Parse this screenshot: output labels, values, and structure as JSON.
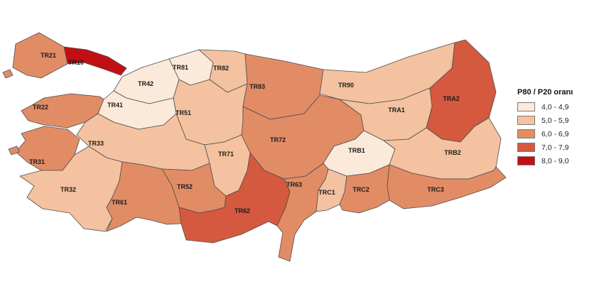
{
  "legend": {
    "title": "P80 / P20 oranı",
    "classes": [
      {
        "label": "4,0 - 4,9",
        "color": "#fbead9"
      },
      {
        "label": "5,0 - 5,9",
        "color": "#f4c2a0"
      },
      {
        "label": "6,0 - 6,9",
        "color": "#e28c66"
      },
      {
        "label": "7,0 - 7,9",
        "color": "#d4593e"
      },
      {
        "label": "8,0 - 9,0",
        "color": "#c20f13"
      }
    ],
    "stroke_color": "#4d4d4d"
  },
  "chart_data": {
    "type": "choropleth-map",
    "title": "P80 / P20 oranı",
    "geography": "Turkey NUTS-2 regions",
    "legend_position": "right",
    "legend_classes": [
      "4,0 - 4,9",
      "5,0 - 5,9",
      "6,0 - 6,9",
      "7,0 - 7,9",
      "8,0 - 9,0"
    ],
    "class_colors": [
      "#fbead9",
      "#f4c2a0",
      "#e28c66",
      "#d4593e",
      "#c20f13"
    ],
    "regions": [
      {
        "code": "TR10",
        "value_class": "8,0 - 9,0",
        "class_index": 4
      },
      {
        "code": "TR21",
        "value_class": "6,0 - 6,9",
        "class_index": 2
      },
      {
        "code": "TR22",
        "value_class": "6,0 - 6,9",
        "class_index": 2
      },
      {
        "code": "TR31",
        "value_class": "6,0 - 6,9",
        "class_index": 2
      },
      {
        "code": "TR32",
        "value_class": "5,0 - 5,9",
        "class_index": 1
      },
      {
        "code": "TR33",
        "value_class": "5,0 - 5,9",
        "class_index": 1
      },
      {
        "code": "TR41",
        "value_class": "4,0 - 4,9",
        "class_index": 0
      },
      {
        "code": "TR42",
        "value_class": "4,0 - 4,9",
        "class_index": 0
      },
      {
        "code": "TR51",
        "value_class": "5,0 - 5,9",
        "class_index": 1
      },
      {
        "code": "TR52",
        "value_class": "6,0 - 6,9",
        "class_index": 2
      },
      {
        "code": "TR61",
        "value_class": "6,0 - 6,9",
        "class_index": 2
      },
      {
        "code": "TR62",
        "value_class": "7,0 - 7,9",
        "class_index": 3
      },
      {
        "code": "TR63",
        "value_class": "6,0 - 6,9",
        "class_index": 2
      },
      {
        "code": "TR71",
        "value_class": "5,0 - 5,9",
        "class_index": 1
      },
      {
        "code": "TR72",
        "value_class": "6,0 - 6,9",
        "class_index": 2
      },
      {
        "code": "TR81",
        "value_class": "4,0 - 4,9",
        "class_index": 0
      },
      {
        "code": "TR82",
        "value_class": "5,0 - 5,9",
        "class_index": 1
      },
      {
        "code": "TR83",
        "value_class": "6,0 - 6,9",
        "class_index": 2
      },
      {
        "code": "TR90",
        "value_class": "5,0 - 5,9",
        "class_index": 1
      },
      {
        "code": "TRA1",
        "value_class": "5,0 - 5,9",
        "class_index": 1
      },
      {
        "code": "TRA2",
        "value_class": "7,0 - 7,9",
        "class_index": 3
      },
      {
        "code": "TRB1",
        "value_class": "4,0 - 4,9",
        "class_index": 0
      },
      {
        "code": "TRB2",
        "value_class": "5,0 - 5,9",
        "class_index": 1
      },
      {
        "code": "TRC1",
        "value_class": "5,0 - 5,9",
        "class_index": 1
      },
      {
        "code": "TRC2",
        "value_class": "6,0 - 6,9",
        "class_index": 2
      },
      {
        "code": "TRC3",
        "value_class": "6,0 - 6,9",
        "class_index": 2
      }
    ]
  }
}
